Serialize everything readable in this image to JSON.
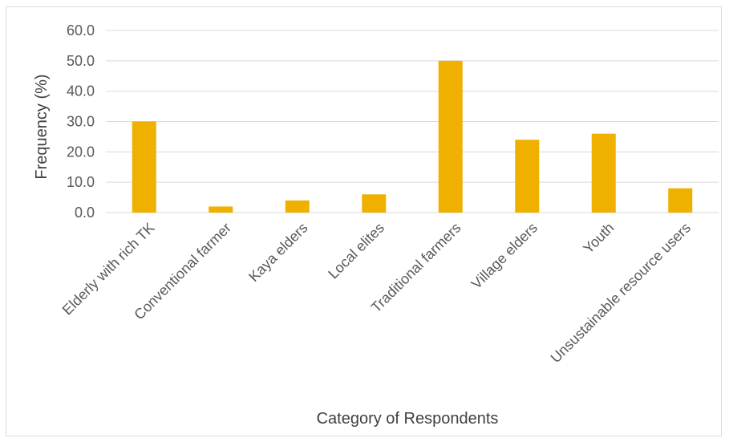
{
  "chart_data": {
    "type": "bar",
    "title": "",
    "xlabel": "Category of Respondents",
    "ylabel": "Frequency (%)",
    "ylim": [
      0,
      60
    ],
    "yticks": [
      "0.0",
      "10.0",
      "20.0",
      "30.0",
      "40.0",
      "50.0",
      "60.0"
    ],
    "categories": [
      "Elderly with rich TK",
      "Conventional farmer",
      "Kaya elders",
      "Local elites",
      "Traditional farmers",
      "Village elders",
      "Youth",
      "Unsustainable resource users"
    ],
    "values": [
      30,
      2,
      4,
      6,
      50,
      24,
      26,
      8
    ],
    "bar_color": "#f0b000",
    "grid": true,
    "legend": "none"
  }
}
